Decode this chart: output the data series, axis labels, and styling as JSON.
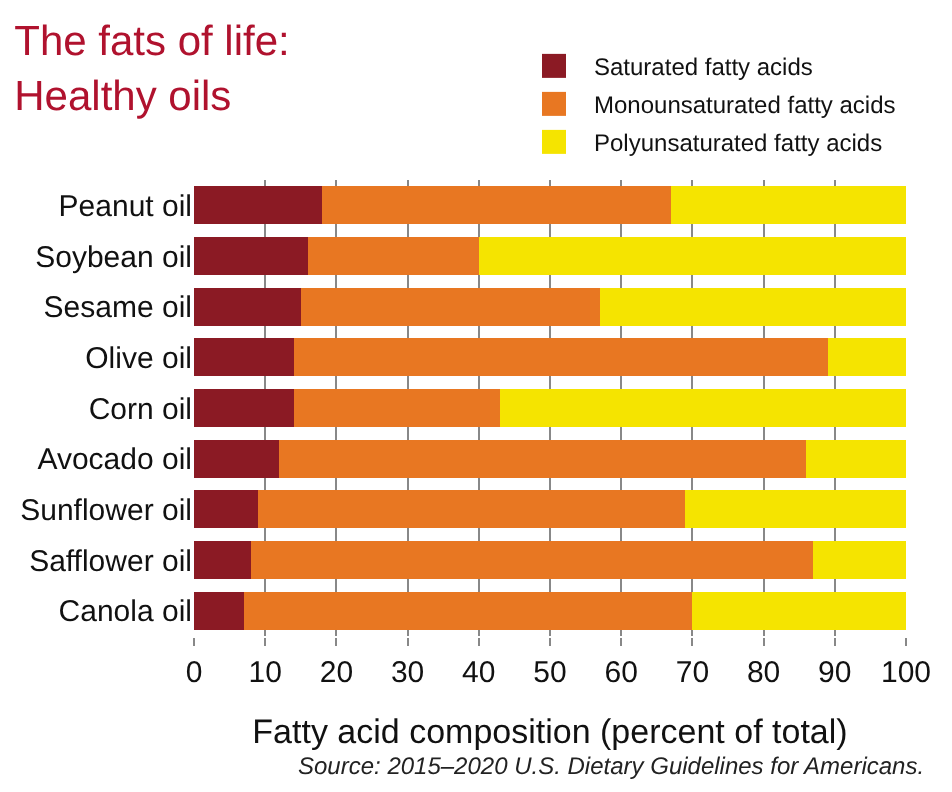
{
  "chart_data": {
    "type": "bar",
    "orientation": "horizontal",
    "stacked": true,
    "title": "The fats of life:\nHealthy oils",
    "xlabel": "Fatty acid composition (percent of total)",
    "categories": [
      "Peanut oil",
      "Soybean oil",
      "Sesame oil",
      "Olive oil",
      "Corn oil",
      "Avocado oil",
      "Sunflower oil",
      "Safflower oil",
      "Canola oil"
    ],
    "series": [
      {
        "name": "Saturated fatty acids",
        "color": "#8b1a24",
        "values": [
          18,
          16,
          15,
          14,
          14,
          12,
          9,
          8,
          7
        ]
      },
      {
        "name": "Monounsaturated fatty acids",
        "color": "#e87722",
        "values": [
          49,
          24,
          42,
          75,
          29,
          74,
          60,
          79,
          63
        ]
      },
      {
        "name": "Polyunsaturated fatty acids",
        "color": "#f5e400",
        "values": [
          33,
          60,
          43,
          11,
          57,
          14,
          31,
          13,
          30
        ]
      }
    ],
    "xlim": [
      0,
      100
    ],
    "xticks": [
      0,
      10,
      20,
      30,
      40,
      50,
      60,
      70,
      80,
      90,
      100
    ],
    "grid": "x",
    "legend": "top right",
    "annotations": [
      "Source: 2015–2020 U.S. Dietary Guidelines for Americans."
    ]
  }
}
